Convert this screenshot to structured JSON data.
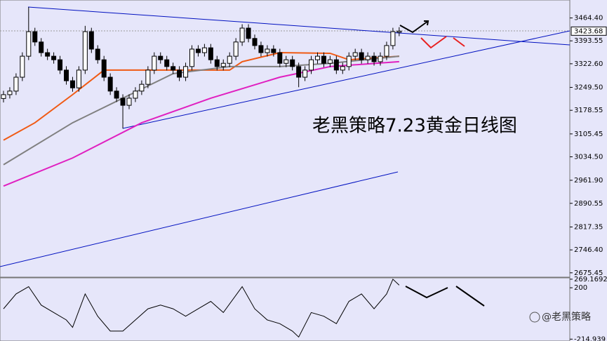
{
  "chart_data": [
    {
      "type": "candlestick",
      "open": [
        3215,
        3227,
        3238,
        3281,
        3346,
        3422,
        3390,
        3357,
        3346,
        3335,
        3303,
        3270,
        3248,
        3303,
        3422,
        3368,
        3335,
        3281,
        3238,
        3216,
        3194,
        3216,
        3238,
        3259,
        3303,
        3346,
        3335,
        3314,
        3303,
        3281,
        3314,
        3368,
        3357,
        3372,
        3335,
        3314,
        3324,
        3346,
        3390,
        3433,
        3401,
        3379,
        3357,
        3368,
        3357,
        3324,
        3335,
        3314,
        3281,
        3303,
        3335,
        3346,
        3324,
        3335,
        3303,
        3314,
        3346,
        3357,
        3335,
        3346,
        3329,
        3346,
        3379,
        3420
      ],
      "high": [
        3239,
        3250,
        3293,
        3358,
        3498,
        3434,
        3402,
        3369,
        3358,
        3347,
        3315,
        3282,
        3315,
        3440,
        3434,
        3380,
        3347,
        3293,
        3250,
        3228,
        3228,
        3250,
        3271,
        3315,
        3358,
        3358,
        3347,
        3326,
        3315,
        3326,
        3380,
        3380,
        3384,
        3384,
        3347,
        3336,
        3358,
        3402,
        3445,
        3445,
        3413,
        3391,
        3380,
        3380,
        3369,
        3347,
        3347,
        3326,
        3315,
        3347,
        3358,
        3358,
        3347,
        3347,
        3326,
        3358,
        3369,
        3369,
        3358,
        3358,
        3358,
        3391,
        3434,
        3436
      ],
      "low": [
        3203,
        3215,
        3226,
        3269,
        3334,
        3378,
        3345,
        3334,
        3323,
        3291,
        3258,
        3236,
        3236,
        3291,
        3356,
        3323,
        3269,
        3226,
        3204,
        3122,
        3182,
        3204,
        3226,
        3247,
        3291,
        3323,
        3302,
        3291,
        3269,
        3269,
        3302,
        3345,
        3345,
        3323,
        3302,
        3302,
        3312,
        3334,
        3378,
        3389,
        3367,
        3345,
        3345,
        3345,
        3312,
        3312,
        3302,
        3250,
        3269,
        3291,
        3323,
        3312,
        3312,
        3291,
        3291,
        3302,
        3334,
        3323,
        3323,
        3317,
        3317,
        3334,
        3367,
        3408
      ],
      "close": [
        3227,
        3238,
        3281,
        3346,
        3422,
        3390,
        3357,
        3346,
        3335,
        3303,
        3270,
        3248,
        3303,
        3422,
        3368,
        3335,
        3281,
        3238,
        3216,
        3194,
        3216,
        3238,
        3259,
        3303,
        3346,
        3335,
        3314,
        3303,
        3281,
        3314,
        3368,
        3357,
        3372,
        3335,
        3314,
        3324,
        3346,
        3390,
        3433,
        3401,
        3379,
        3357,
        3368,
        3357,
        3324,
        3335,
        3314,
        3281,
        3303,
        3335,
        3346,
        3324,
        3335,
        3303,
        3314,
        3346,
        3357,
        3335,
        3346,
        3329,
        3346,
        3379,
        3422,
        3423.68
      ],
      "series": [
        {
          "color": "#f05a14",
          "x": [
            0,
            5,
            11,
            16,
            22,
            36,
            38,
            44,
            52,
            55,
            63
          ],
          "values": [
            3086,
            3140,
            3227,
            3303,
            3303,
            3303,
            3329,
            3357,
            3355,
            3335,
            3346
          ]
        },
        {
          "color": "#808080",
          "x": [
            0,
            11,
            19,
            27,
            36,
            44,
            52,
            63
          ],
          "values": [
            3010,
            3140,
            3216,
            3292,
            3314,
            3314,
            3324,
            3346
          ]
        },
        {
          "color": "#e020c0",
          "x": [
            0,
            11,
            22,
            33,
            44,
            52,
            63
          ],
          "values": [
            2944,
            3031,
            3140,
            3216,
            3281,
            3314,
            3329
          ]
        }
      ],
      "ylim": [
        2662,
        3520
      ],
      "yticks": [
        {
          "value": 3464.4,
          "label": "3464.40"
        },
        {
          "value": 3393.55,
          "label": "3393.55"
        },
        {
          "value": 3322.6,
          "label": "3322.60"
        },
        {
          "value": 3249.5,
          "label": "3249.50"
        },
        {
          "value": 3178.55,
          "label": "3178.55"
        },
        {
          "value": 3105.45,
          "label": "3105.45"
        },
        {
          "value": 3034.5,
          "label": "3034.50"
        },
        {
          "value": 2961.9,
          "label": "2961.90"
        },
        {
          "value": 2890.55,
          "label": "2890.55"
        },
        {
          "value": 2817.35,
          "label": "2817.35"
        },
        {
          "value": 2746.4,
          "label": "2746.40"
        },
        {
          "value": 2675.45,
          "label": "2675.45"
        }
      ],
      "annotation": "老黑策略7.23黄金日线图",
      "watermark": "@老黑策略"
    },
    {
      "type": "line",
      "x": [
        0,
        2,
        4,
        6,
        8,
        10,
        11,
        13,
        15,
        17,
        19,
        21,
        23,
        25,
        27,
        29,
        31,
        33,
        35,
        38,
        40,
        42,
        44,
        46,
        47,
        49,
        51,
        53,
        55,
        57,
        59,
        61,
        62,
        63
      ],
      "values": [
        30,
        150,
        209,
        60,
        0,
        -60,
        -120,
        150,
        -30,
        -150,
        -150,
        -60,
        30,
        60,
        30,
        -30,
        30,
        90,
        0,
        209,
        30,
        -60,
        -90,
        -150,
        -198,
        0,
        -30,
        -90,
        90,
        150,
        30,
        150,
        269,
        221
      ],
      "color": "#000000",
      "ylim": [
        -230,
        280
      ],
      "yticks": [
        269.1692,
        200,
        -214.939
      ]
    }
  ]
}
